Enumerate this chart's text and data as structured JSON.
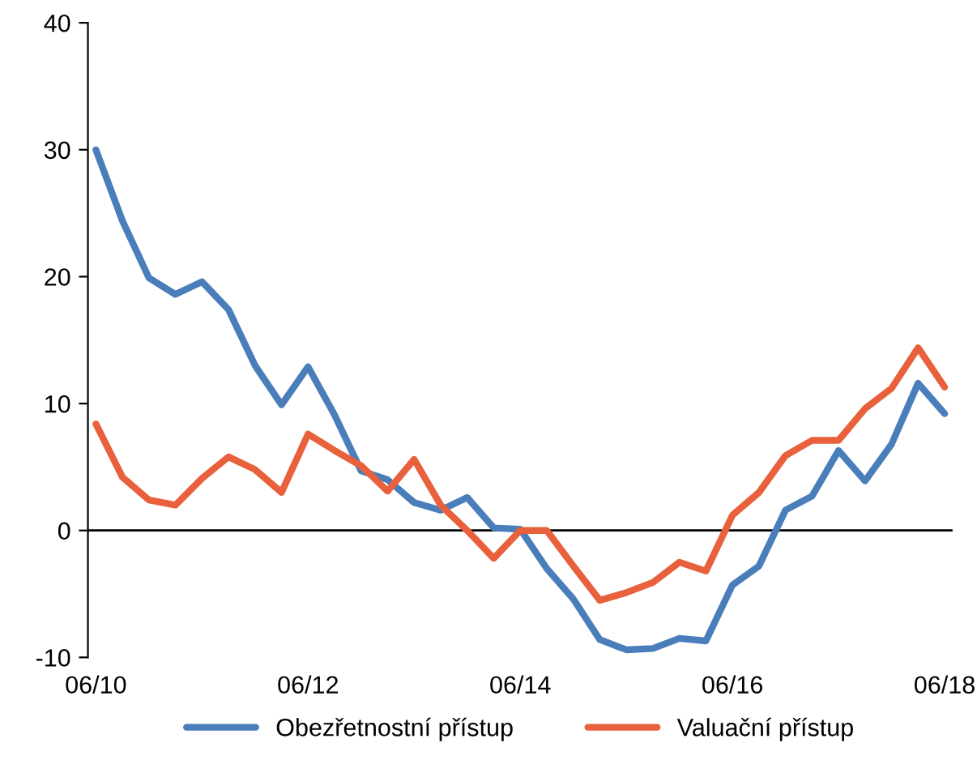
{
  "chart_data": {
    "type": "line",
    "categories": [
      "06/10",
      null,
      null,
      null,
      null,
      null,
      null,
      null,
      "06/12",
      null,
      null,
      null,
      null,
      null,
      null,
      null,
      "06/14",
      null,
      null,
      null,
      null,
      null,
      null,
      null,
      "06/16",
      null,
      null,
      null,
      null,
      null,
      null,
      null,
      "06/18"
    ],
    "series": [
      {
        "name": "Obezřetnostní přístup",
        "color": "#4a7ebb",
        "values": [
          30.0,
          24.4,
          19.9,
          18.6,
          19.6,
          17.4,
          13.0,
          9.9,
          12.9,
          9.1,
          4.7,
          4.0,
          2.2,
          1.6,
          2.6,
          0.2,
          0.1,
          -3.0,
          -5.4,
          -8.6,
          -9.4,
          -9.3,
          -8.5,
          -8.7,
          -4.3,
          -2.8,
          1.6,
          2.7,
          6.3,
          3.9,
          6.8,
          11.6,
          9.2
        ]
      },
      {
        "name": "Valuační přístup",
        "color": "#e8603c",
        "values": [
          8.4,
          4.2,
          2.4,
          2.0,
          4.1,
          5.8,
          4.8,
          3.0,
          7.6,
          6.3,
          5.1,
          3.1,
          5.6,
          2.0,
          0.0,
          -2.2,
          0.0,
          0.0,
          -2.8,
          -5.5,
          -4.9,
          -4.1,
          -2.5,
          -3.2,
          1.2,
          3.0,
          5.9,
          7.1,
          7.1,
          9.6,
          11.2,
          14.4,
          11.3
        ]
      }
    ],
    "ylim": [
      -10,
      40
    ],
    "yticks": [
      -10,
      0,
      10,
      20,
      30,
      40
    ],
    "ref_lines": [
      {
        "axis": "y",
        "value": 0,
        "color": "#000000"
      }
    ],
    "grid": false,
    "legend": "bottom",
    "marker": "none",
    "line_style": "solid"
  }
}
